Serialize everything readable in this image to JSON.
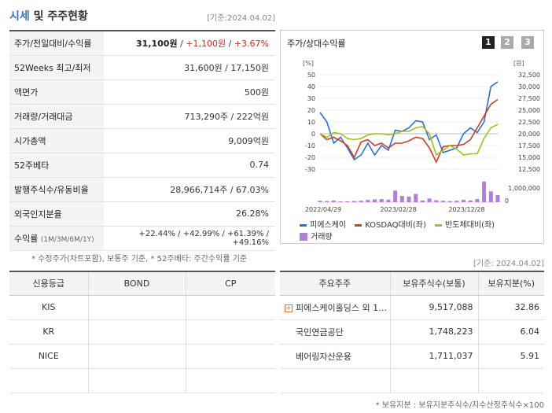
{
  "header": {
    "title_a": "시세",
    "title_b": " 및 주주현황",
    "date": "[기준:2024.04.02]"
  },
  "summary": {
    "rows": [
      {
        "label": "주가/전일대비/수익률",
        "price": "31,100원",
        "sep1": " / ",
        "change": "+1,100원",
        "sep2": " / ",
        "rate": "+3.67%"
      },
      {
        "label": "52Weeks 최고/최저",
        "value": "31,600원 / 17,150원"
      },
      {
        "label": "액면가",
        "value": "500원"
      },
      {
        "label": "거래량/거래대금",
        "value": "713,290주 / 222억원"
      },
      {
        "label": "시가총액",
        "value": "9,009억원"
      },
      {
        "label": "52주베타",
        "value": "0.74"
      },
      {
        "label": "발행주식수/유동비율",
        "value": "28,966,714주 / 67.03%"
      },
      {
        "label": "외국인지분율",
        "value": "26.28%"
      },
      {
        "label": "수익률",
        "label_sub": "(1M/3M/6M/1Y)",
        "value": "+22.44% / +42.99% / +61.39% / +49.16%"
      }
    ],
    "note": "* 수정주가(차트포함), 보통주 기준, * 52주베타: 주간수익률 기준"
  },
  "chart": {
    "title": "주가/상대수익률",
    "pages": [
      "1",
      "2",
      "3"
    ],
    "left_unit": "[%]",
    "right_unit": "[원]",
    "legend": [
      {
        "label": "피에스케이",
        "color": "#2b6fd6"
      },
      {
        "label": "KOSDAQ대비(좌)",
        "color": "#d23b1f"
      },
      {
        "label": "반도체대비(좌)",
        "color": "#9cc31a"
      },
      {
        "label": "거래량",
        "color": "#b27fd6"
      }
    ]
  },
  "chart_data": {
    "type": "line",
    "x_tick_labels": [
      "2022/04/29",
      "2023/02/28",
      "2023/12/28"
    ],
    "left_axis": {
      "unit": "%",
      "ticks": [
        50,
        40,
        30,
        20,
        10,
        0,
        -10,
        -20,
        -30
      ]
    },
    "right_axis": {
      "unit": "원",
      "ticks": [
        "32,500",
        "30,000",
        "27,500",
        "25,000",
        "22,500",
        "20,000",
        "17,500",
        "15,000",
        "12,500"
      ]
    },
    "volume_axis": {
      "ticks": [
        "1,000,000",
        "0"
      ]
    },
    "series": [
      {
        "name": "피에스케이",
        "values": [
          18,
          10,
          -8,
          -3,
          -12,
          -22,
          -18,
          -8,
          -18,
          -10,
          -14,
          3,
          2,
          5,
          11,
          10,
          -5,
          -1,
          -16,
          -14,
          -12,
          0,
          5,
          1,
          10,
          40,
          44
        ]
      },
      {
        "name": "KOSDAQ대비(좌)",
        "values": [
          0,
          -5,
          -3,
          -6,
          -10,
          -20,
          -7,
          -5,
          -10,
          -8,
          -12,
          -8,
          -8,
          -6,
          -3,
          -4,
          -12,
          -24,
          -11,
          -10,
          -10,
          -9,
          -5,
          5,
          15,
          25,
          29
        ]
      },
      {
        "name": "반도체대비(좌)",
        "values": [
          0,
          -3,
          1,
          0,
          -4,
          -5,
          -4,
          -1,
          0,
          0,
          -1,
          0,
          2,
          2,
          5,
          6,
          0,
          -18,
          -14,
          -10,
          -13,
          -18,
          -17,
          -17,
          -4,
          5,
          8
        ]
      },
      {
        "name": "거래량",
        "values": [
          0.1,
          0.08,
          0.12,
          0.06,
          0.06,
          0.08,
          0.1,
          0.16,
          0.2,
          0.22,
          0.18,
          0.82,
          0.44,
          0.4,
          0.58,
          0.12,
          0.26,
          0.14,
          0.1,
          0.08,
          0.1,
          0.16,
          0.12,
          0.22,
          1.46,
          0.76,
          0.5
        ]
      }
    ]
  },
  "date2": "[기준: 2024.04.02]",
  "credit": {
    "headers": [
      "신용등급",
      "BOND",
      "CP"
    ],
    "rows": [
      [
        "KIS",
        "",
        ""
      ],
      [
        "KR",
        "",
        ""
      ],
      [
        "NICE",
        "",
        ""
      ],
      [
        "",
        "",
        ""
      ]
    ]
  },
  "holders": {
    "headers": [
      "주요주주",
      "보유주식수(보통)",
      "보유지분(%)"
    ],
    "rows": [
      {
        "name": "피에스케이홀딩스 외 1…",
        "shares": "9,517,088",
        "pct": "32.86",
        "expand": "+"
      },
      {
        "name": "국민연금공단",
        "shares": "1,748,223",
        "pct": "6.04",
        "expand": ""
      },
      {
        "name": "베어링자산운용",
        "shares": "1,711,037",
        "pct": "5.91",
        "expand": ""
      },
      {
        "name": "",
        "shares": "",
        "pct": "",
        "expand": ""
      }
    ],
    "note": "* 보유지분 : 보유지분주식수/지수산정주식수×100"
  }
}
